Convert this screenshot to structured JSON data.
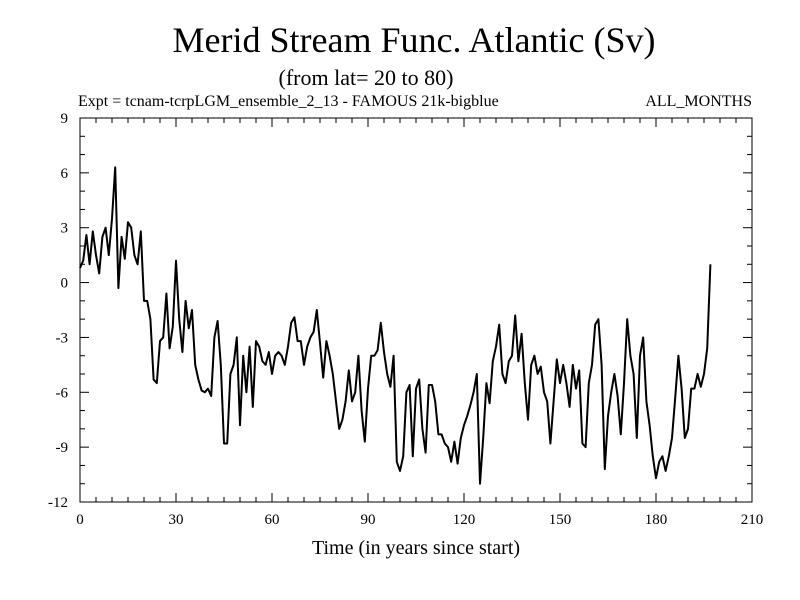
{
  "chart_data": {
    "type": "line",
    "title": "Merid Stream Func. Atlantic (Sv)",
    "subtitle": "(from lat= 20 to 80)",
    "expt_label": "Expt = tcnam-tcrpLGM_ensemble_2_13 - FAMOUS 21k-bigblue",
    "months_label": "ALL_MONTHS",
    "xlabel": "Time (in years since start)",
    "ylabel": "",
    "xlim": [
      0,
      210
    ],
    "ylim": [
      -12,
      9
    ],
    "x_ticks": [
      0,
      30,
      60,
      90,
      120,
      150,
      180,
      210
    ],
    "x_tick_labels": [
      "0",
      "30",
      "60",
      "90",
      "120",
      "150",
      "180",
      "210"
    ],
    "y_ticks": [
      9,
      6,
      3,
      0,
      -3,
      -6,
      -9,
      -12
    ],
    "y_tick_labels": [
      "9",
      "6",
      "3",
      "0",
      "-3",
      "-6",
      "-9",
      "-12"
    ],
    "grid": false,
    "line_color": "#000000",
    "series": [
      {
        "name": "Merid Stream Func. Atlantic",
        "x_start": 0,
        "x_step": 1,
        "values": [
          0.8,
          1.2,
          2.6,
          1.0,
          2.8,
          1.5,
          0.5,
          2.5,
          3.0,
          1.5,
          3.5,
          6.3,
          -0.3,
          2.5,
          1.3,
          3.3,
          3.0,
          1.5,
          1.0,
          2.8,
          -1.0,
          -1.0,
          -2.0,
          -5.3,
          -5.5,
          -3.2,
          -3.0,
          -0.6,
          -3.6,
          -2.4,
          1.2,
          -2.0,
          -3.8,
          -1.0,
          -2.5,
          -1.5,
          -4.5,
          -5.3,
          -5.9,
          -6.0,
          -5.8,
          -6.2,
          -3.0,
          -2.1,
          -4.5,
          -8.8,
          -8.8,
          -5.0,
          -4.5,
          -3.0,
          -7.8,
          -4.0,
          -6.0,
          -3.5,
          -6.8,
          -3.2,
          -3.5,
          -4.3,
          -4.5,
          -3.8,
          -5.0,
          -4.0,
          -3.8,
          -4.0,
          -4.5,
          -3.5,
          -2.2,
          -1.9,
          -3.2,
          -3.2,
          -4.5,
          -3.5,
          -3.0,
          -2.7,
          -1.5,
          -3.3,
          -5.2,
          -3.2,
          -4.0,
          -5.0,
          -6.5,
          -8.0,
          -7.5,
          -6.5,
          -4.8,
          -6.5,
          -6.0,
          -4.0,
          -7.0,
          -8.7,
          -5.8,
          -4.0,
          -4.0,
          -3.7,
          -2.2,
          -3.8,
          -5.0,
          -5.7,
          -4.0,
          -9.8,
          -10.3,
          -9.5,
          -6.0,
          -5.6,
          -9.5,
          -5.8,
          -5.3,
          -8.0,
          -9.3,
          -5.6,
          -5.6,
          -6.5,
          -8.3,
          -8.3,
          -8.8,
          -9.0,
          -9.8,
          -8.7,
          -9.9,
          -8.5,
          -7.8,
          -7.3,
          -6.7,
          -6.0,
          -5.0,
          -11.0,
          -8.5,
          -5.5,
          -6.6,
          -4.3,
          -3.5,
          -2.3,
          -5.0,
          -5.5,
          -4.3,
          -4.0,
          -1.8,
          -4.3,
          -2.8,
          -5.5,
          -7.5,
          -4.5,
          -4.0,
          -5.0,
          -4.6,
          -6.0,
          -6.5,
          -8.8,
          -6.5,
          -4.2,
          -5.5,
          -4.5,
          -5.5,
          -6.8,
          -4.5,
          -5.8,
          -4.8,
          -8.8,
          -9.0,
          -5.5,
          -4.5,
          -2.3,
          -2.0,
          -4.5,
          -10.2,
          -7.3,
          -6.0,
          -5.0,
          -6.2,
          -8.3,
          -5.5,
          -2.0,
          -4.0,
          -5.0,
          -8.5,
          -4.0,
          -3.0,
          -6.5,
          -7.8,
          -9.5,
          -10.7,
          -9.8,
          -9.5,
          -10.3,
          -9.5,
          -8.5,
          -6.3,
          -4.0,
          -5.8,
          -8.5,
          -8.0,
          -5.8,
          -5.8,
          -5.0,
          -5.7,
          -5.0,
          -3.6,
          1.0
        ]
      }
    ]
  }
}
